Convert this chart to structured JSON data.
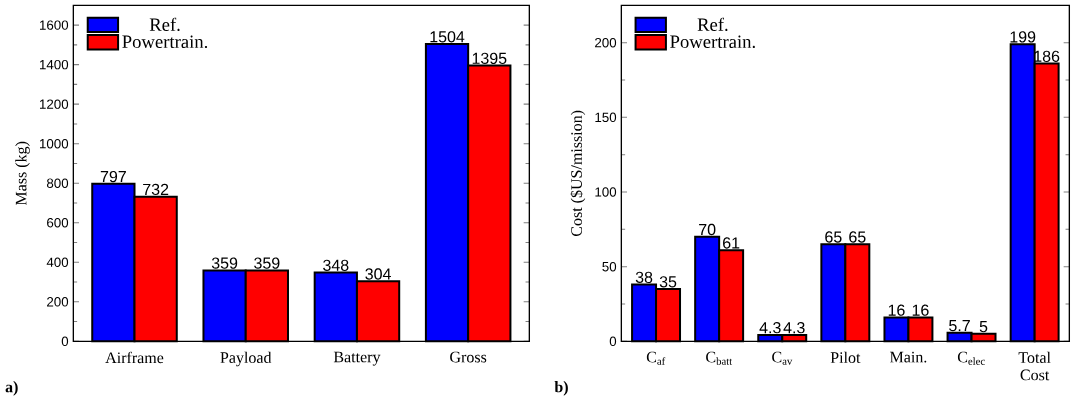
{
  "chart_data": [
    {
      "type": "bar",
      "categories": [
        "Airframe",
        "Payload",
        "Battery",
        "Gross"
      ],
      "series": [
        {
          "name": "Ref.",
          "color": "#0000ff",
          "values": [
            797,
            359,
            348,
            1504
          ]
        },
        {
          "name": "Powertrain.",
          "color": "#ff0000",
          "values": [
            732,
            359,
            304,
            1395
          ]
        }
      ],
      "ylabel": "Mass (kg)",
      "ylim": [
        0,
        1700
      ],
      "yticks": [
        0,
        200,
        400,
        600,
        800,
        1000,
        1200,
        1400,
        1600
      ],
      "data_labels": true,
      "legend": "top left",
      "annotations": [
        "a)"
      ]
    },
    {
      "type": "bar",
      "categories": [
        "C$_{af}$",
        "C$_{batt}$",
        "C$_{av}$",
        "Pilot",
        "Main.",
        "C$_{elec}$",
        "Total Cost"
      ],
      "series": [
        {
          "name": "Ref.",
          "color": "#0000ff",
          "values": [
            38,
            70,
            4.3,
            65,
            16,
            5.7,
            199
          ]
        },
        {
          "name": "Powertrain.",
          "color": "#ff0000",
          "values": [
            35,
            61,
            4.3,
            65,
            16,
            5,
            186
          ]
        }
      ],
      "ylabel": "Cost ($US/mission)",
      "ylim": [
        0,
        225
      ],
      "yticks": [
        0,
        50,
        100,
        150,
        200
      ],
      "data_labels": true,
      "legend": "top left",
      "annotations": [
        "b)"
      ]
    }
  ]
}
